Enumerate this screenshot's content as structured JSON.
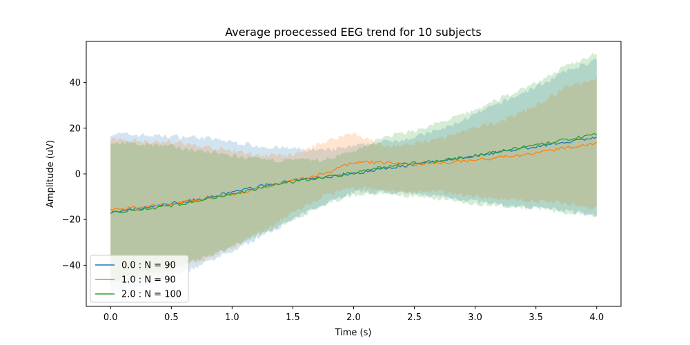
{
  "chart_data": {
    "type": "line",
    "title": "Average proecessed EEG trend for 10 subjects",
    "xlabel": "Time (s)",
    "ylabel": "Amplitude (uV)",
    "xlim": [
      -0.2,
      4.2
    ],
    "ylim": [
      -58,
      58
    ],
    "x_ticks": [
      0.0,
      0.5,
      1.0,
      1.5,
      2.0,
      2.5,
      3.0,
      3.5,
      4.0
    ],
    "x_tick_labels": [
      "0.0",
      "0.5",
      "1.0",
      "1.5",
      "2.0",
      "2.5",
      "3.0",
      "3.5",
      "4.0"
    ],
    "y_ticks": [
      -40,
      -20,
      0,
      20,
      40
    ],
    "y_tick_labels": [
      "−40",
      "−20",
      "0",
      "20",
      "40"
    ],
    "grid": false,
    "legend": {
      "placement": "lower-left"
    },
    "band_opacity": 0.2,
    "series": [
      {
        "name": "0.0 : N = 90",
        "color": "#1f77b4",
        "x": [
          0.0,
          0.25,
          0.5,
          0.75,
          1.0,
          1.25,
          1.5,
          1.75,
          2.0,
          2.25,
          2.5,
          2.75,
          3.0,
          3.25,
          3.5,
          3.75,
          4.0
        ],
        "mean": [
          -17,
          -15.2,
          -13,
          -11,
          -8,
          -5.2,
          -3,
          -1.5,
          0,
          2.5,
          4,
          6,
          8,
          10,
          12,
          14,
          16
        ],
        "upper": [
          17.5,
          17,
          16.5,
          16,
          14,
          12,
          11,
          10,
          12,
          14,
          16,
          20,
          26,
          32,
          38,
          45,
          50
        ],
        "lower": [
          -52,
          -49,
          -45,
          -40,
          -34,
          -27,
          -20,
          -13,
          -8,
          -8,
          -9,
          -10,
          -12,
          -14,
          -15,
          -16,
          -18
        ]
      },
      {
        "name": "1.0 : N = 90",
        "color": "#ff7f0e",
        "x": [
          0.0,
          0.25,
          0.5,
          0.75,
          1.0,
          1.25,
          1.5,
          1.75,
          2.0,
          2.25,
          2.5,
          2.75,
          3.0,
          3.25,
          3.5,
          3.75,
          4.0
        ],
        "mean": [
          -16,
          -14.5,
          -13,
          -11,
          -9,
          -6,
          -3,
          0,
          5,
          5,
          4,
          5,
          6,
          7.5,
          9,
          11.5,
          13.5
        ],
        "upper": [
          15,
          14.5,
          14,
          12,
          10,
          8,
          8,
          14,
          18,
          12,
          13,
          16,
          20,
          24,
          30,
          38,
          42
        ],
        "lower": [
          -48,
          -46,
          -42,
          -38,
          -32,
          -25,
          -17,
          -10,
          -6,
          -7,
          -8,
          -8,
          -10,
          -11,
          -12,
          -13,
          -15
        ]
      },
      {
        "name": "2.0 : N = 100",
        "color": "#2ca02c",
        "x": [
          0.0,
          0.25,
          0.5,
          0.75,
          1.0,
          1.25,
          1.5,
          1.75,
          2.0,
          2.25,
          2.5,
          2.75,
          3.0,
          3.25,
          3.5,
          3.75,
          4.0
        ],
        "mean": [
          -17,
          -15.5,
          -14,
          -11.5,
          -9,
          -6,
          -3.5,
          -1.5,
          0.5,
          3,
          5,
          6,
          8,
          10.5,
          12.5,
          15,
          17.5
        ],
        "upper": [
          14,
          13,
          12,
          10,
          8,
          6,
          6,
          6,
          10,
          16,
          19,
          23,
          28,
          34,
          40,
          47,
          53
        ],
        "lower": [
          -47,
          -44,
          -41,
          -37,
          -32,
          -26,
          -20,
          -14,
          -9,
          -9,
          -10,
          -11,
          -13,
          -14,
          -15,
          -17,
          -18
        ]
      }
    ]
  }
}
